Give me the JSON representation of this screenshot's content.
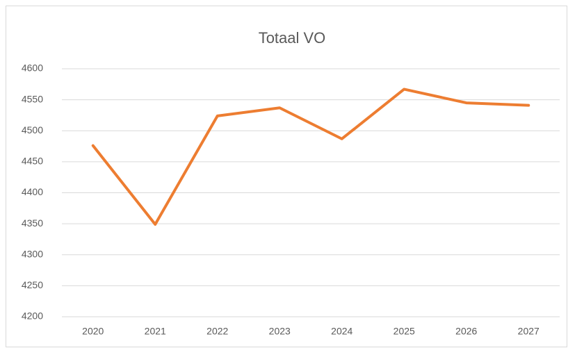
{
  "chart_data": {
    "type": "line",
    "title": "Totaal VO",
    "categories": [
      "2020",
      "2021",
      "2022",
      "2023",
      "2024",
      "2025",
      "2026",
      "2027"
    ],
    "series": [
      {
        "name": "Totaal VO",
        "color": "#ed7d31",
        "values": [
          4476,
          4349,
          4524,
          4537,
          4487,
          4567,
          4545,
          4541
        ]
      }
    ],
    "ylim": [
      4200,
      4600
    ],
    "yticks": [
      4200,
      4250,
      4300,
      4350,
      4400,
      4450,
      4500,
      4550,
      4600
    ],
    "grid": true
  }
}
